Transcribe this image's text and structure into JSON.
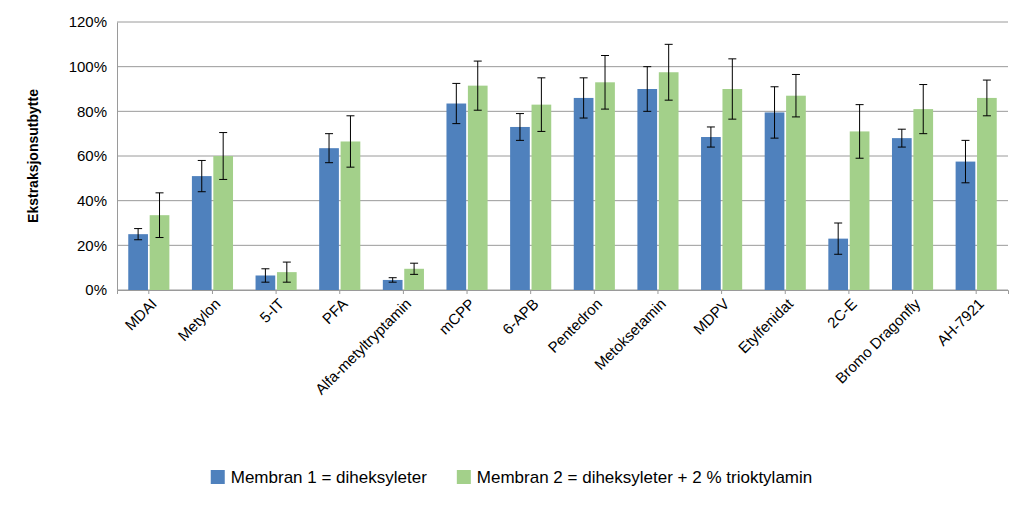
{
  "chart_data": {
    "type": "bar",
    "y_label": "Ekstraksjonsutbytte",
    "categories": [
      "MDAI",
      "Metylon",
      "5-IT",
      "PFA",
      "Alfa-metyltryptamin",
      "mCPP",
      "6-APB",
      "Pentedron",
      "Metoksetamin",
      "MDPV",
      "Etylfenidat",
      "2C-E",
      "Bromo Dragonfly",
      "AH-7921"
    ],
    "series": [
      {
        "name": "Membran 1 = diheksyleter",
        "color": "#4f81bd",
        "values": [
          25,
          51,
          6.5,
          63.5,
          4.5,
          83.5,
          73,
          86,
          90,
          68.5,
          79.5,
          23,
          68,
          57.5
        ],
        "errors": [
          2.5,
          7,
          3,
          6.5,
          1,
          9,
          6,
          9,
          10,
          4.5,
          11.5,
          7,
          4,
          9.5
        ]
      },
      {
        "name": "Membran 2 = diheksyleter + 2 % trioktylamin",
        "color": "#a3d08a",
        "values": [
          33.5,
          60,
          8,
          66.5,
          9.5,
          91.5,
          83,
          93,
          97.5,
          90,
          87,
          71,
          81,
          86
        ],
        "errors": [
          10,
          10.5,
          4.5,
          11.5,
          2.5,
          11,
          12,
          12,
          12.5,
          13.5,
          9.5,
          12,
          11,
          8
        ]
      }
    ],
    "ylim": [
      0,
      120
    ],
    "yticks": [
      {
        "value": 0,
        "label": "0%"
      },
      {
        "value": 20,
        "label": "20%"
      },
      {
        "value": 40,
        "label": "40%"
      },
      {
        "value": 60,
        "label": "60%"
      },
      {
        "value": 80,
        "label": "80%"
      },
      {
        "value": 100,
        "label": "100%"
      },
      {
        "value": 120,
        "label": "120%"
      }
    ],
    "grid": true,
    "legend": "bottom"
  }
}
